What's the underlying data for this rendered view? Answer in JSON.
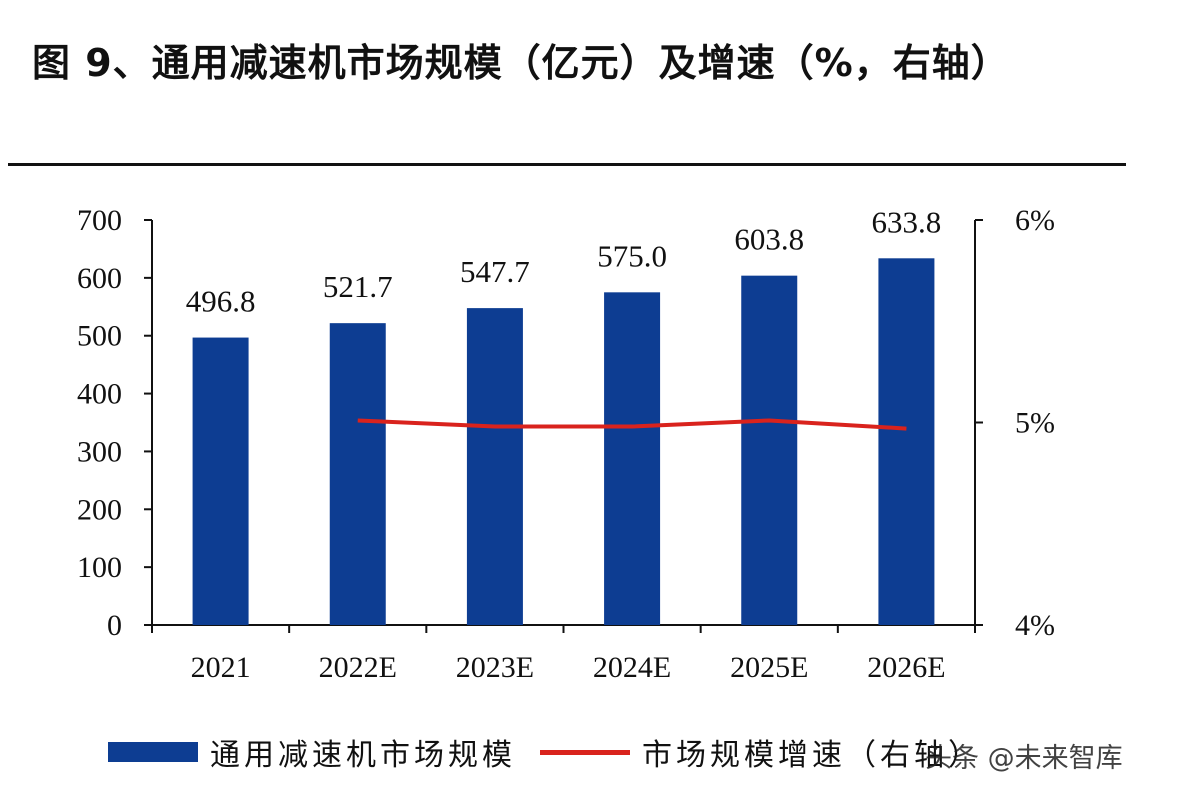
{
  "title": "图 9、通用减速机市场规模（亿元）及增速（%，右轴）",
  "watermark": "头条 @未来智库",
  "colors": {
    "bar": "#0d3d92",
    "line": "#d9231d",
    "axis": "#111111"
  },
  "chart_data": {
    "type": "bar+line",
    "categories": [
      "2021",
      "2022E",
      "2023E",
      "2024E",
      "2025E",
      "2026E"
    ],
    "series": [
      {
        "name": "通用减速机市场规模",
        "type": "bar",
        "axis": "left",
        "values": [
          496.8,
          521.7,
          547.7,
          575.0,
          603.8,
          633.8
        ],
        "labels": [
          "496.8",
          "521.7",
          "547.7",
          "575.0",
          "603.8",
          "633.8"
        ]
      },
      {
        "name": "市场规模增速（右轴）",
        "type": "line",
        "axis": "right",
        "values": [
          null,
          5.01,
          4.98,
          4.98,
          5.01,
          4.97
        ]
      }
    ],
    "y_left": {
      "min": 0,
      "max": 700,
      "ticks": [
        "0",
        "100",
        "200",
        "300",
        "400",
        "500",
        "600",
        "700"
      ]
    },
    "y_right": {
      "min": 4,
      "max": 6,
      "ticks": [
        "4%",
        "5%",
        "6%"
      ]
    },
    "legend_position": "bottom",
    "grid": false
  }
}
